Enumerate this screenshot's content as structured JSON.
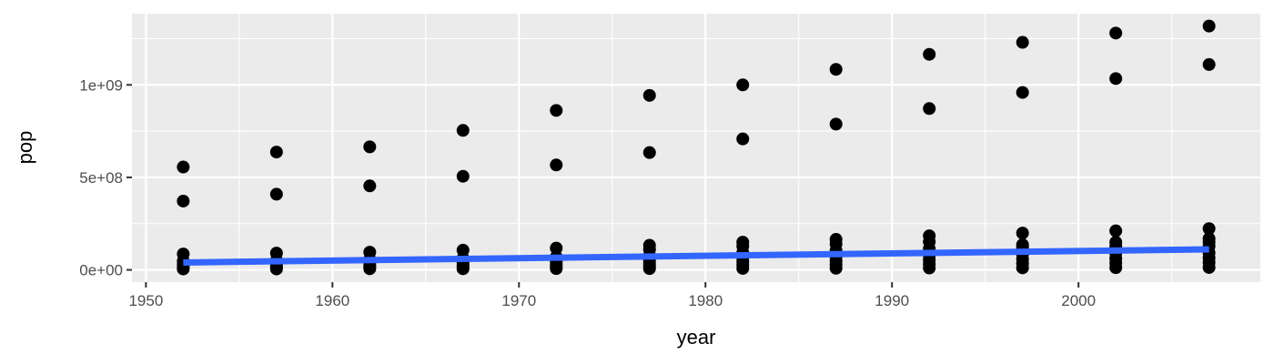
{
  "chart_data": {
    "type": "scatter",
    "title": "",
    "xlabel": "year",
    "ylabel": "pop",
    "xlim": [
      1949.25,
      2009.75
    ],
    "ylim": [
      -66000000,
      1385000000
    ],
    "x_ticks": [
      1950,
      1960,
      1970,
      1980,
      1990,
      2000
    ],
    "x_minor_ticks": [
      1955,
      1965,
      1975,
      1985,
      1995,
      2005
    ],
    "y_ticks": [
      {
        "value": 0,
        "label": "0e+00"
      },
      {
        "value": 500000000,
        "label": "5e+08"
      },
      {
        "value": 1000000000,
        "label": "1e+09"
      }
    ],
    "y_minor_ticks": [
      250000000,
      750000000,
      1250000000
    ],
    "grid": true,
    "legend": "none",
    "colors": {
      "panel_background": "#ebebeb",
      "grid": "#ffffff",
      "point": "#000000",
      "trend_line": "#3366ff",
      "confidence_band": "#999999"
    },
    "series": [
      {
        "type": "scatter",
        "points": [
          {
            "x": 1952,
            "y": 556000000
          },
          {
            "x": 1952,
            "y": 372000000
          },
          {
            "x": 1952,
            "y": 86000000
          },
          {
            "x": 1952,
            "y": 48000000
          },
          {
            "x": 1952,
            "y": 30000000
          },
          {
            "x": 1952,
            "y": 20000000
          },
          {
            "x": 1952,
            "y": 12000000
          },
          {
            "x": 1952,
            "y": 5000000
          },
          {
            "x": 1957,
            "y": 637000000
          },
          {
            "x": 1957,
            "y": 409000000
          },
          {
            "x": 1957,
            "y": 91000000
          },
          {
            "x": 1957,
            "y": 52000000
          },
          {
            "x": 1957,
            "y": 33000000
          },
          {
            "x": 1957,
            "y": 22000000
          },
          {
            "x": 1957,
            "y": 13000000
          },
          {
            "x": 1957,
            "y": 5000000
          },
          {
            "x": 1962,
            "y": 665000000
          },
          {
            "x": 1962,
            "y": 454000000
          },
          {
            "x": 1962,
            "y": 96000000
          },
          {
            "x": 1962,
            "y": 57000000
          },
          {
            "x": 1962,
            "y": 36000000
          },
          {
            "x": 1962,
            "y": 24000000
          },
          {
            "x": 1962,
            "y": 14000000
          },
          {
            "x": 1962,
            "y": 6000000
          },
          {
            "x": 1967,
            "y": 754000000
          },
          {
            "x": 1967,
            "y": 506000000
          },
          {
            "x": 1967,
            "y": 107000000
          },
          {
            "x": 1967,
            "y": 63000000
          },
          {
            "x": 1967,
            "y": 40000000
          },
          {
            "x": 1967,
            "y": 27000000
          },
          {
            "x": 1967,
            "y": 16000000
          },
          {
            "x": 1967,
            "y": 6000000
          },
          {
            "x": 1972,
            "y": 862000000
          },
          {
            "x": 1972,
            "y": 567000000
          },
          {
            "x": 1972,
            "y": 118000000
          },
          {
            "x": 1972,
            "y": 70000000
          },
          {
            "x": 1972,
            "y": 45000000
          },
          {
            "x": 1972,
            "y": 30000000
          },
          {
            "x": 1972,
            "y": 18000000
          },
          {
            "x": 1972,
            "y": 7000000
          },
          {
            "x": 1977,
            "y": 943000000
          },
          {
            "x": 1977,
            "y": 634000000
          },
          {
            "x": 1977,
            "y": 133000000
          },
          {
            "x": 1977,
            "y": 110000000
          },
          {
            "x": 1977,
            "y": 78000000
          },
          {
            "x": 1977,
            "y": 50000000
          },
          {
            "x": 1977,
            "y": 33000000
          },
          {
            "x": 1977,
            "y": 20000000
          },
          {
            "x": 1977,
            "y": 7000000
          },
          {
            "x": 1982,
            "y": 1000000000
          },
          {
            "x": 1982,
            "y": 708000000
          },
          {
            "x": 1982,
            "y": 150000000
          },
          {
            "x": 1982,
            "y": 128000000
          },
          {
            "x": 1982,
            "y": 93000000
          },
          {
            "x": 1982,
            "y": 66000000
          },
          {
            "x": 1982,
            "y": 45000000
          },
          {
            "x": 1982,
            "y": 27000000
          },
          {
            "x": 1982,
            "y": 8000000
          },
          {
            "x": 1987,
            "y": 1084000000
          },
          {
            "x": 1987,
            "y": 788000000
          },
          {
            "x": 1987,
            "y": 165000000
          },
          {
            "x": 1987,
            "y": 140000000
          },
          {
            "x": 1987,
            "y": 104000000
          },
          {
            "x": 1987,
            "y": 72000000
          },
          {
            "x": 1987,
            "y": 50000000
          },
          {
            "x": 1987,
            "y": 29000000
          },
          {
            "x": 1987,
            "y": 9000000
          },
          {
            "x": 1992,
            "y": 1165000000
          },
          {
            "x": 1992,
            "y": 872000000
          },
          {
            "x": 1992,
            "y": 184000000
          },
          {
            "x": 1992,
            "y": 152000000
          },
          {
            "x": 1992,
            "y": 114000000
          },
          {
            "x": 1992,
            "y": 78000000
          },
          {
            "x": 1992,
            "y": 54000000
          },
          {
            "x": 1992,
            "y": 32000000
          },
          {
            "x": 1992,
            "y": 10000000
          },
          {
            "x": 1997,
            "y": 1230000000
          },
          {
            "x": 1997,
            "y": 959000000
          },
          {
            "x": 1997,
            "y": 199000000
          },
          {
            "x": 1997,
            "y": 136000000
          },
          {
            "x": 1997,
            "y": 120000000
          },
          {
            "x": 1997,
            "y": 84000000
          },
          {
            "x": 1997,
            "y": 58000000
          },
          {
            "x": 1997,
            "y": 35000000
          },
          {
            "x": 1997,
            "y": 11000000
          },
          {
            "x": 2002,
            "y": 1280000000
          },
          {
            "x": 2002,
            "y": 1034000000
          },
          {
            "x": 2002,
            "y": 211000000
          },
          {
            "x": 2002,
            "y": 150000000
          },
          {
            "x": 2002,
            "y": 127000000
          },
          {
            "x": 2002,
            "y": 90000000
          },
          {
            "x": 2002,
            "y": 62000000
          },
          {
            "x": 2002,
            "y": 37000000
          },
          {
            "x": 2002,
            "y": 12000000
          },
          {
            "x": 2007,
            "y": 1318000000
          },
          {
            "x": 2007,
            "y": 1110000000
          },
          {
            "x": 2007,
            "y": 223000000
          },
          {
            "x": 2007,
            "y": 169000000
          },
          {
            "x": 2007,
            "y": 150000000
          },
          {
            "x": 2007,
            "y": 127000000
          },
          {
            "x": 2007,
            "y": 92000000
          },
          {
            "x": 2007,
            "y": 65000000
          },
          {
            "x": 2007,
            "y": 40000000
          },
          {
            "x": 2007,
            "y": 13000000
          }
        ]
      },
      {
        "type": "smooth",
        "method": "lm",
        "points": [
          {
            "x": 1952,
            "y": 40000000
          },
          {
            "x": 2007,
            "y": 111000000
          }
        ],
        "band_lower": [
          {
            "x": 1952,
            "y": 25000000
          },
          {
            "x": 2007,
            "y": 96000000
          }
        ],
        "band_upper": [
          {
            "x": 1952,
            "y": 55000000
          },
          {
            "x": 2007,
            "y": 126000000
          }
        ]
      }
    ]
  }
}
